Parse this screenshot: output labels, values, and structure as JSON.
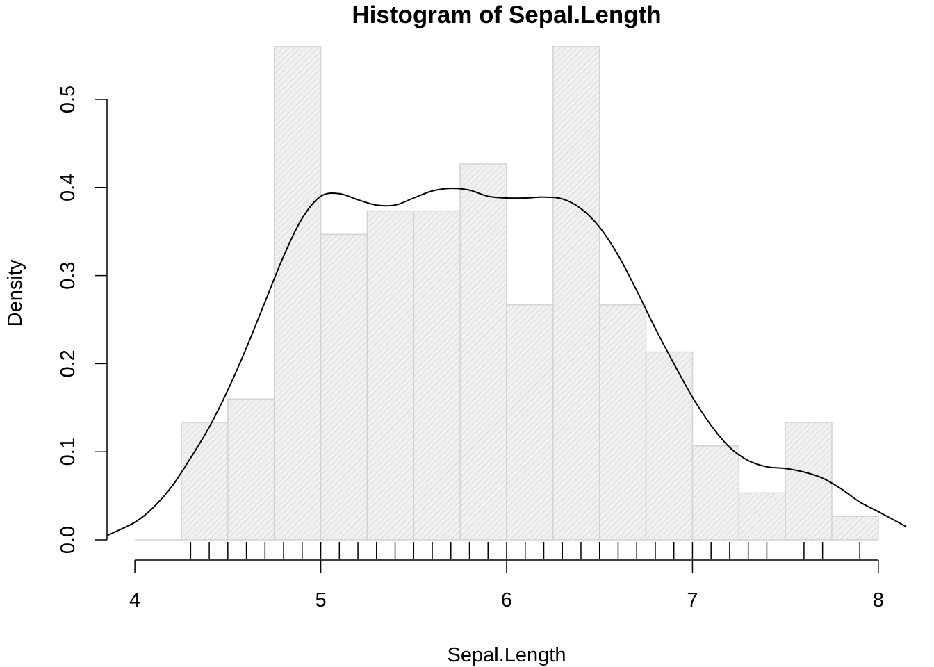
{
  "chart_data": {
    "type": "bar",
    "title": "Histogram of Sepal.Length",
    "xlabel": "Sepal.Length",
    "ylabel": "Density",
    "xlim": [
      3.85,
      8.15
    ],
    "ylim": [
      0,
      0.56
    ],
    "x_ticks": [
      4,
      5,
      6,
      7,
      8
    ],
    "x_tick_labels": [
      "4",
      "5",
      "6",
      "7",
      "8"
    ],
    "y_ticks": [
      0.0,
      0.1,
      0.2,
      0.3,
      0.4,
      0.5
    ],
    "y_tick_labels": [
      "0.0",
      "0.1",
      "0.2",
      "0.3",
      "0.4",
      "0.5"
    ],
    "grid": false,
    "bar_fill": "#f0f0f0",
    "bar_stroke": "#d3d3d3",
    "hatch_color": "#d3d3d3",
    "line_color": "#000000",
    "bins": [
      {
        "x0": 4.25,
        "x1": 4.5,
        "density": 0.1333
      },
      {
        "x0": 4.5,
        "x1": 4.75,
        "density": 0.16
      },
      {
        "x0": 4.75,
        "x1": 5.0,
        "density": 0.56
      },
      {
        "x0": 5.0,
        "x1": 5.25,
        "density": 0.3467
      },
      {
        "x0": 5.25,
        "x1": 5.5,
        "density": 0.3733
      },
      {
        "x0": 5.5,
        "x1": 5.75,
        "density": 0.3733
      },
      {
        "x0": 5.75,
        "x1": 6.0,
        "density": 0.4267
      },
      {
        "x0": 6.0,
        "x1": 6.25,
        "density": 0.2667
      },
      {
        "x0": 6.25,
        "x1": 6.5,
        "density": 0.56
      },
      {
        "x0": 6.5,
        "x1": 6.75,
        "density": 0.2667
      },
      {
        "x0": 6.75,
        "x1": 7.0,
        "density": 0.2133
      },
      {
        "x0": 7.0,
        "x1": 7.25,
        "density": 0.1067
      },
      {
        "x0": 7.25,
        "x1": 7.5,
        "density": 0.0533
      },
      {
        "x0": 7.5,
        "x1": 7.75,
        "density": 0.1333
      },
      {
        "x0": 7.75,
        "x1": 8.0,
        "density": 0.0267
      }
    ],
    "density_curve": {
      "x": [
        3.85,
        4.0,
        4.1,
        4.2,
        4.3,
        4.4,
        4.5,
        4.6,
        4.7,
        4.8,
        4.9,
        5.0,
        5.1,
        5.2,
        5.3,
        5.4,
        5.5,
        5.6,
        5.7,
        5.8,
        5.9,
        6.0,
        6.1,
        6.2,
        6.3,
        6.4,
        6.5,
        6.6,
        6.7,
        6.8,
        6.9,
        7.0,
        7.1,
        7.2,
        7.3,
        7.4,
        7.5,
        7.6,
        7.7,
        7.8,
        7.9,
        8.0,
        8.15
      ],
      "y": [
        0.005,
        0.02,
        0.037,
        0.061,
        0.093,
        0.128,
        0.17,
        0.218,
        0.27,
        0.322,
        0.365,
        0.39,
        0.393,
        0.386,
        0.38,
        0.38,
        0.388,
        0.396,
        0.399,
        0.397,
        0.39,
        0.388,
        0.388,
        0.389,
        0.387,
        0.376,
        0.355,
        0.323,
        0.283,
        0.24,
        0.2,
        0.162,
        0.13,
        0.105,
        0.09,
        0.083,
        0.081,
        0.077,
        0.07,
        0.058,
        0.043,
        0.032,
        0.015
      ]
    },
    "rug": [
      4.3,
      4.4,
      4.5,
      4.6,
      4.7,
      4.8,
      4.9,
      5.0,
      5.1,
      5.2,
      5.3,
      5.4,
      5.5,
      5.6,
      5.7,
      5.8,
      5.9,
      6.0,
      6.1,
      6.2,
      6.3,
      6.4,
      6.5,
      6.6,
      6.7,
      6.8,
      6.9,
      7.0,
      7.1,
      7.2,
      7.3,
      7.4,
      7.6,
      7.7,
      7.9
    ]
  }
}
